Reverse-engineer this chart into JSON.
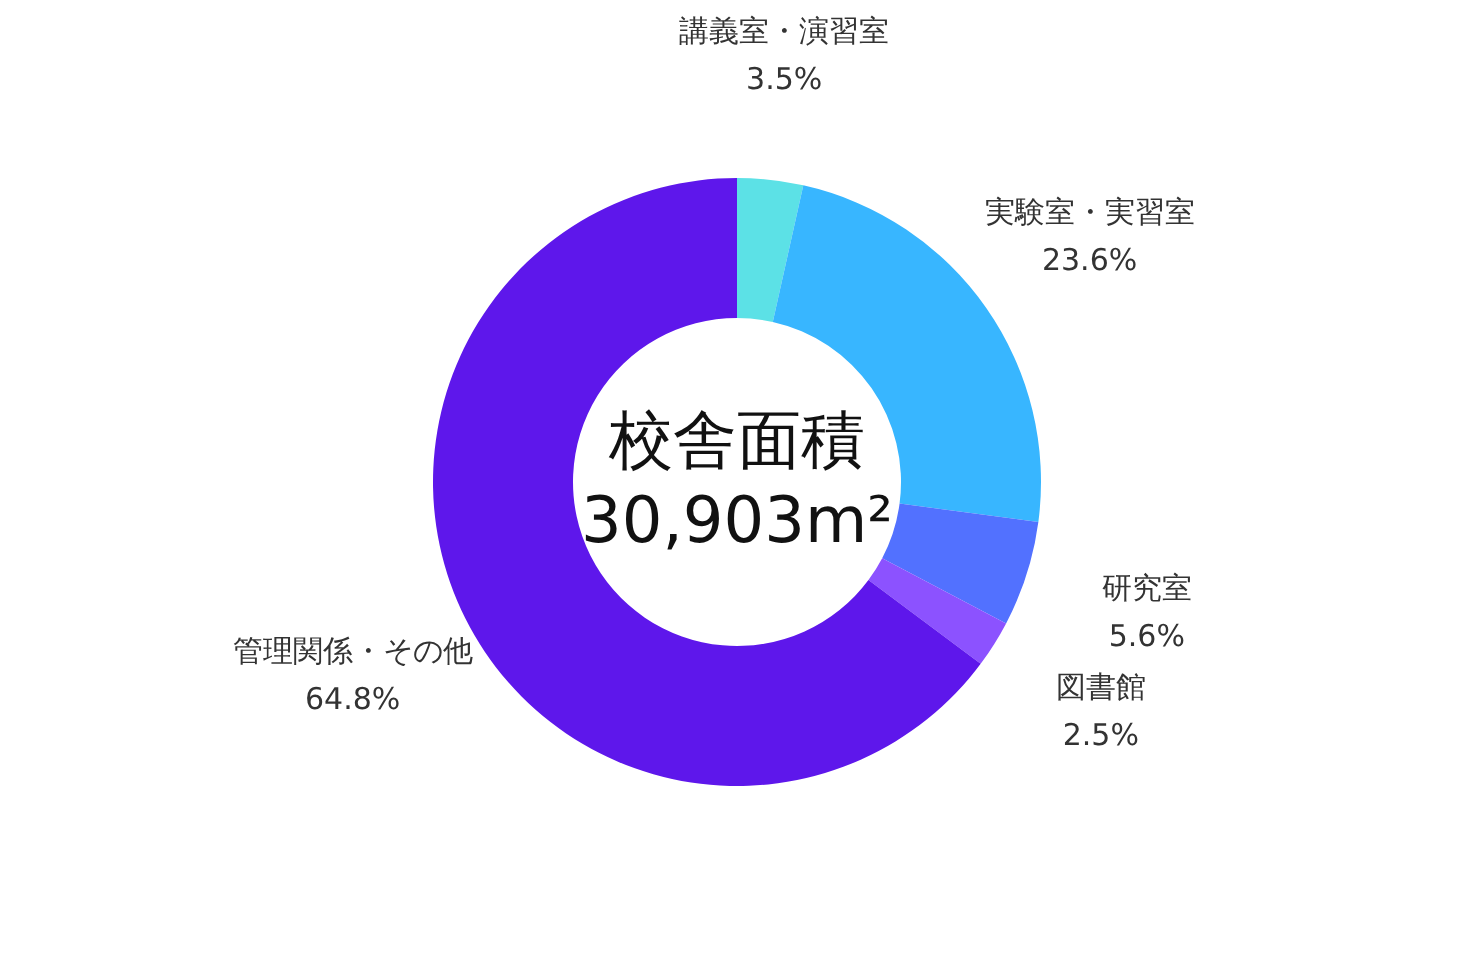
{
  "chart_data": {
    "type": "donut",
    "categories": [
      "講義室・演習室",
      "実験室・実習室",
      "研究室",
      "図書館",
      "管理関係・その他"
    ],
    "values": [
      3.5,
      23.6,
      5.6,
      2.5,
      64.8
    ],
    "value_labels": [
      "3.5%",
      "23.6%",
      "5.6%",
      "2.5%",
      "64.8%"
    ],
    "colors": [
      "#5ce1e6",
      "#38b6ff",
      "#5271ff",
      "#8c52ff",
      "#5e17eb"
    ],
    "annotations": [
      "校舎面積",
      "30,903m²"
    ],
    "legend": false
  }
}
